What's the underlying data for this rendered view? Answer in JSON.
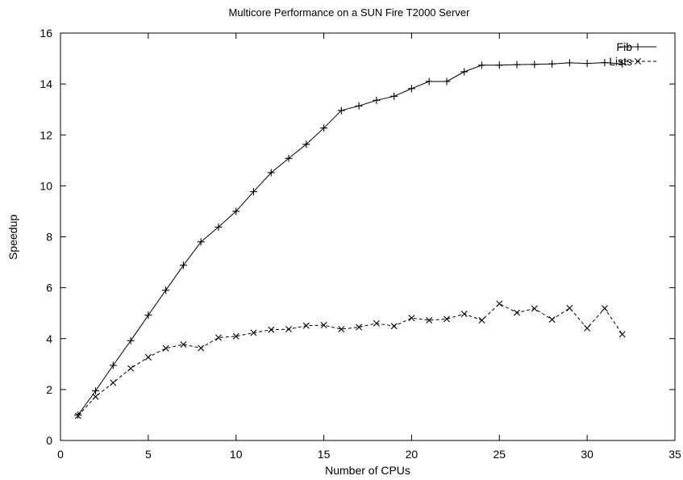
{
  "chart_data": {
    "type": "line",
    "title": "Multicore Performance on a SUN Fire T2000 Server",
    "xlabel": "Number of CPUs",
    "ylabel": "Speedup",
    "xlim": [
      0,
      35
    ],
    "ylim": [
      0,
      16
    ],
    "xticks": [
      0,
      5,
      10,
      15,
      20,
      25,
      30,
      35
    ],
    "yticks": [
      0,
      2,
      4,
      6,
      8,
      10,
      12,
      14,
      16
    ],
    "grid": false,
    "legend_position": "top-right",
    "series": [
      {
        "name": "Fib",
        "line_style": "solid",
        "marker": "plus",
        "color": "#000000",
        "x": [
          1,
          2,
          3,
          4,
          5,
          6,
          7,
          8,
          9,
          10,
          11,
          12,
          13,
          14,
          15,
          16,
          17,
          18,
          19,
          20,
          21,
          22,
          23,
          24,
          25,
          26,
          27,
          28,
          29,
          30,
          31,
          32
        ],
        "y": [
          1.0,
          1.95,
          2.95,
          3.92,
          4.92,
          5.9,
          6.88,
          7.8,
          8.38,
          9.0,
          9.77,
          10.52,
          11.08,
          11.63,
          12.27,
          12.96,
          13.14,
          13.36,
          13.52,
          13.82,
          14.1,
          14.1,
          14.48,
          14.74,
          14.74,
          14.76,
          14.77,
          14.79,
          14.83,
          14.81,
          14.84,
          14.79
        ]
      },
      {
        "name": "Lists",
        "line_style": "dashed",
        "marker": "x",
        "color": "#000000",
        "x": [
          1,
          2,
          3,
          4,
          5,
          6,
          7,
          8,
          9,
          10,
          11,
          12,
          13,
          14,
          15,
          16,
          17,
          18,
          19,
          20,
          21,
          22,
          23,
          24,
          25,
          26,
          27,
          28,
          29,
          30,
          31,
          32
        ],
        "y": [
          0.97,
          1.72,
          2.27,
          2.83,
          3.27,
          3.62,
          3.77,
          3.63,
          4.04,
          4.09,
          4.23,
          4.35,
          4.37,
          4.51,
          4.53,
          4.37,
          4.45,
          4.6,
          4.49,
          4.81,
          4.72,
          4.77,
          4.97,
          4.72,
          5.37,
          5.02,
          5.18,
          4.75,
          5.2,
          4.41,
          5.19,
          4.17
        ]
      }
    ]
  }
}
